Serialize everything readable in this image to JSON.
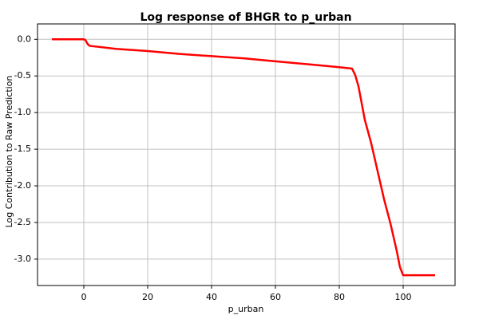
{
  "chart_data": {
    "type": "line",
    "title": "Log response of BHGR to p_urban",
    "x_label": "p_urban",
    "y_label": "Log Contribution to Raw Prediction",
    "x": [
      -10,
      -5,
      0,
      0.5,
      1,
      1.5,
      2,
      10,
      20,
      30,
      40,
      50,
      60,
      70,
      80,
      84,
      85,
      86,
      88,
      90,
      92,
      94,
      96,
      98,
      99,
      100,
      101,
      105,
      110
    ],
    "series": [
      {
        "name": "p_urban",
        "color": "#ff0000",
        "values": [
          0,
          0,
          0,
          -0.01,
          -0.05,
          -0.08,
          -0.09,
          -0.13,
          -0.16,
          -0.2,
          -0.23,
          -0.26,
          -0.3,
          -0.34,
          -0.38,
          -0.4,
          -0.49,
          -0.64,
          -1.1,
          -1.42,
          -1.8,
          -2.18,
          -2.51,
          -2.89,
          -3.11,
          -3.22,
          -3.22,
          -3.22,
          -3.22
        ]
      }
    ],
    "xlim": [
      -14.5,
      116.25
    ],
    "ylim": [
      -3.36,
      0.21
    ],
    "xticks": [
      0,
      20,
      40,
      60,
      80,
      100
    ],
    "yticks": [
      {
        "value": 0,
        "label": "0.0"
      },
      -0.5,
      {
        "value": -1,
        "label": "-1.0"
      },
      -1.5,
      {
        "value": -2,
        "label": "-2.0"
      },
      -2.5,
      {
        "value": -3,
        "label": "-3.0"
      }
    ],
    "grid": true
  }
}
